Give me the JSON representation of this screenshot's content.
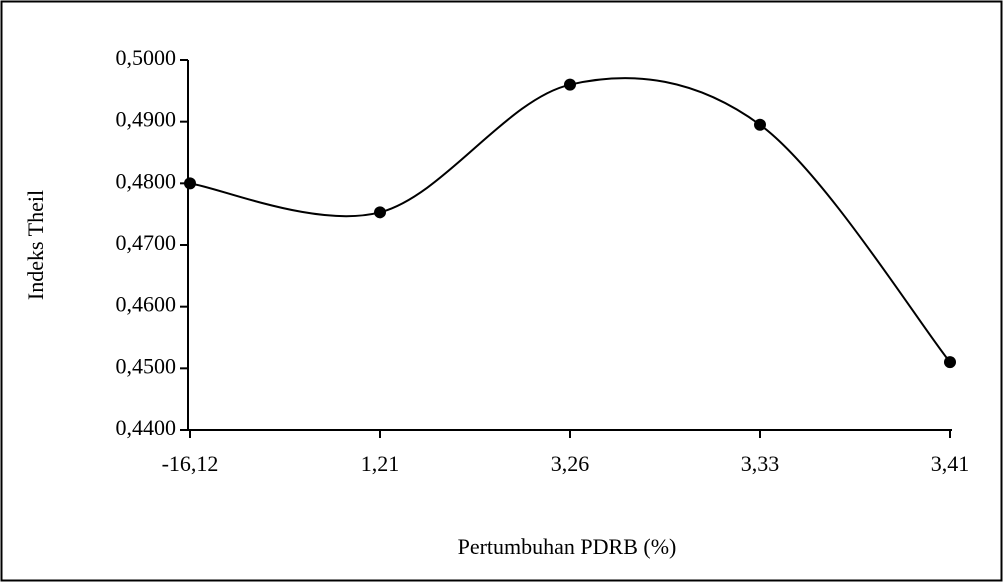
{
  "chart_data": {
    "type": "line",
    "x_label": "Pertumbuhan PDRB (%)",
    "y_label": "Indeks Theil",
    "categories": [
      "-16,12",
      "1,21",
      "3,26",
      "3,33",
      "3,41"
    ],
    "series": [
      {
        "name": "Indeks Theil",
        "color": "#000000",
        "values": [
          0.48,
          0.4753,
          0.496,
          0.4895,
          0.451
        ]
      }
    ],
    "ylim": [
      0.44,
      0.5
    ],
    "yticks": [
      {
        "value": 0.44,
        "label": "0,4400"
      },
      {
        "value": 0.45,
        "label": "0,4500"
      },
      {
        "value": 0.46,
        "label": "0,4600"
      },
      {
        "value": 0.47,
        "label": "0,4700"
      },
      {
        "value": 0.48,
        "label": "0,4800"
      },
      {
        "value": 0.49,
        "label": "0,4900"
      },
      {
        "value": 0.5,
        "label": "0,5000"
      }
    ],
    "smooth": true,
    "markers": true,
    "grid": false
  }
}
